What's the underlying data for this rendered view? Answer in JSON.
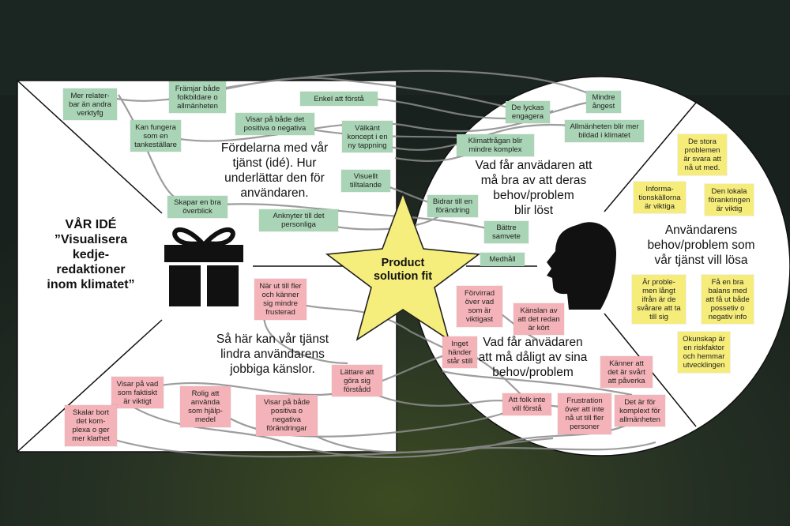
{
  "idea": {
    "text": "VÅR IDÉ\n”Visualisera\nkedje-\nredaktioner\ninom klimatet”"
  },
  "center": {
    "label": "Product\nsolution fit"
  },
  "headings": {
    "gains_creators": "Fördelarna med vår\ntjänst (idé). Hur\nunderlättar den för\nanvändaren.",
    "pain_relievers": "Så här kan vår tjänst\nlindra användarens\njobbiga känslor.",
    "gains": "Vad får anvädaren att\nmå bra av att deras\nbehov/problem\nblir löst",
    "pains": "Vad får anvädaren\natt må dåligt av sina\nbehov/problem",
    "jobs": "Användarens\nbehov/problem som\nvår tjänst vill lösa"
  },
  "notes": {
    "g1": "Mer relater-\nbar än andra\nverktyfg",
    "g2": "Främjar både\nfolkbildare o\nallmänheten",
    "g3": "Enkel att förstå",
    "g4": "Visar på både det\npositiva o negativa",
    "g5": "Kan fungera\nsom en\ntankeställare",
    "g6": "Välkänt\nkoncept i en\nny tappning",
    "g7": "Visuellt\ntilltalande",
    "g8": "Skapar en bra\növerblick",
    "g9": "Anknyter till det\npersonliga",
    "r1": "Mindre\nångest",
    "r2": "De lyckas\nengagera",
    "r3": "Allmänheten blir mer\nbildad i klimatet",
    "r4": "Klimatfrågan blir\nmindre komplex",
    "r5": "Bidrar till en\nförändring",
    "r6": "Bättre\nsamvete",
    "r7": "Medhåll",
    "p1": "När ut till fler\noch känner\nsig mindre\nfrusterad",
    "p2": "Lättare att\ngöra sig\nförstådd",
    "p3": "Visar på vad\nsom faktiskt\när viktigt",
    "p4": "Rolig att\nanvända\nsom hjälp-\nmedel",
    "p5": "Visar på både\npositiva o\nnegativa\nförändringar",
    "p6": "Skalar bort\ndet kom-\nplexa o ger\nmer klarhet",
    "q1": "Förvirrad\növer vad\nsom är\nviktigast",
    "q2": "Känslan av\natt det redan\när kört",
    "q3": "Inget\nhänder\nstår still",
    "q4": "Känner att\ndet är svårt\natt påverka",
    "q5": "Att folk inte\nvill förstå",
    "q6": "Frustration\növer att inte\nnå ut till fler\npersoner",
    "q7": "Det är för\nkomplext för\nallmänheten",
    "y1": "De stora\nproblemen\när svara att\nnå ut med.",
    "y2": "Informa-\ntionskällorna\när viktiga",
    "y3": "Den lokala\nförankringen\när viktig",
    "y4": "Är proble-\nmen långt\nifrån är de\nsvårare att ta\ntill sig",
    "y5": "Få en bra\nbalans med\natt få ut både\npossetiv o\nnegativ info",
    "y6": "Okunskap är\nen riskfaktor\noch hemmar\nutvecklingen"
  },
  "colors": {
    "background": "#1f2a24",
    "panel": "#ffffff",
    "green_note": "#a9d5b6",
    "pink_note": "#f4b3b8",
    "yellow_note": "#f5ec7a",
    "star": "#f6ee7c",
    "connector": "#8c8c8c"
  },
  "icons": [
    "gift-icon",
    "head-icon",
    "star-icon"
  ]
}
